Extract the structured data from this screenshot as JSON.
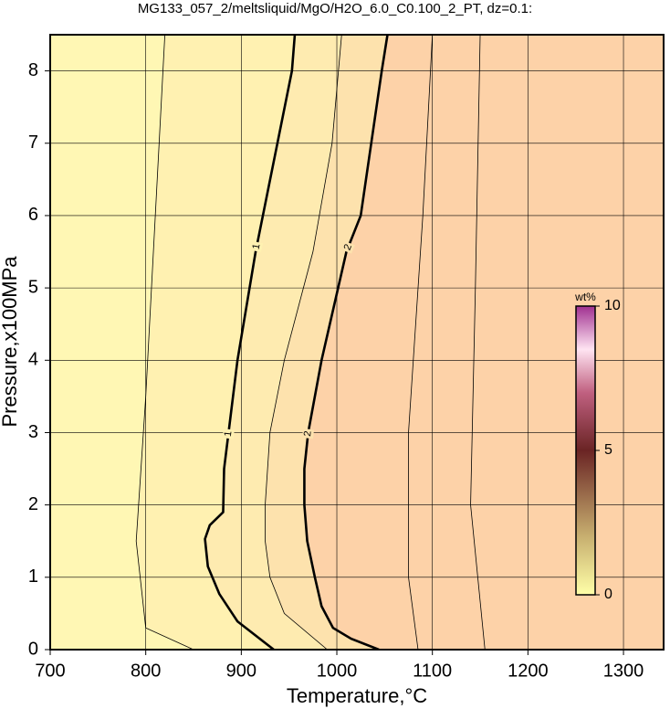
{
  "chart_data": {
    "type": "contour",
    "title": "MG133_057_2/meltsliquid/MgO/H2O_6.0_C0.100_2_PT, dz=0.1:",
    "x_label": "Temperature,°C",
    "y_label": "Pressure,x100MPa",
    "xlim": [
      700,
      1342
    ],
    "ylim": [
      0,
      8.5
    ],
    "xticks": [
      700,
      800,
      900,
      1000,
      1100,
      1200,
      1300
    ],
    "yticks": [
      0,
      1,
      2,
      3,
      4,
      5,
      6,
      7,
      8
    ],
    "grid": true,
    "background": "#fdd2a8",
    "contours": [
      {
        "level": 2,
        "bold": true,
        "labeled": true,
        "fill": "#fde2ad",
        "x": [
          1053,
          1047,
          1025,
          1010,
          984,
          970,
          966,
          966,
          969,
          977,
          984,
          996,
          1015,
          1044
        ],
        "y": [
          8.5,
          8,
          6,
          5.5,
          4,
          3,
          2.5,
          2,
          1.5,
          1,
          0.6,
          0.3,
          0.15,
          0
        ]
      },
      {
        "level": 1.5,
        "bold": false,
        "labeled": false,
        "fill": "#feebb0",
        "x": [
          1005,
          995,
          975,
          945,
          930,
          925,
          925,
          930,
          945,
          990
        ],
        "y": [
          8.5,
          7,
          5.5,
          4,
          3,
          2,
          1.5,
          1,
          0.5,
          0
        ]
      },
      {
        "level": 1,
        "bold": true,
        "labeled": true,
        "fill": "#fff1b1",
        "x": [
          956,
          953,
          915,
          896,
          882,
          881,
          867,
          862,
          865,
          877,
          896,
          934
        ],
        "y": [
          8.5,
          8,
          5.5,
          4,
          2.5,
          1.9,
          1.72,
          1.53,
          1.15,
          0.77,
          0.39,
          0
        ]
      },
      {
        "level": 0.5,
        "bold": false,
        "labeled": false,
        "fill": "#fff7b4",
        "x": [
          820,
          810,
          800,
          790,
          800,
          850
        ],
        "y": [
          8.5,
          6,
          3.5,
          1.5,
          0.3,
          0
        ]
      },
      {
        "level": 2.5,
        "bold": false,
        "labeled": false,
        "x": [
          1100,
          1090,
          1075,
          1075,
          1085
        ],
        "y": [
          8.5,
          6,
          3,
          1,
          0
        ]
      },
      {
        "level": 3,
        "bold": false,
        "labeled": false,
        "x": [
          1150,
          1145,
          1140,
          1155
        ],
        "y": [
          8.5,
          5,
          2,
          0
        ]
      }
    ],
    "colorbar": {
      "label": "wt%",
      "lim": [
        0,
        10
      ],
      "ticks": [
        0,
        5,
        10
      ]
    }
  }
}
